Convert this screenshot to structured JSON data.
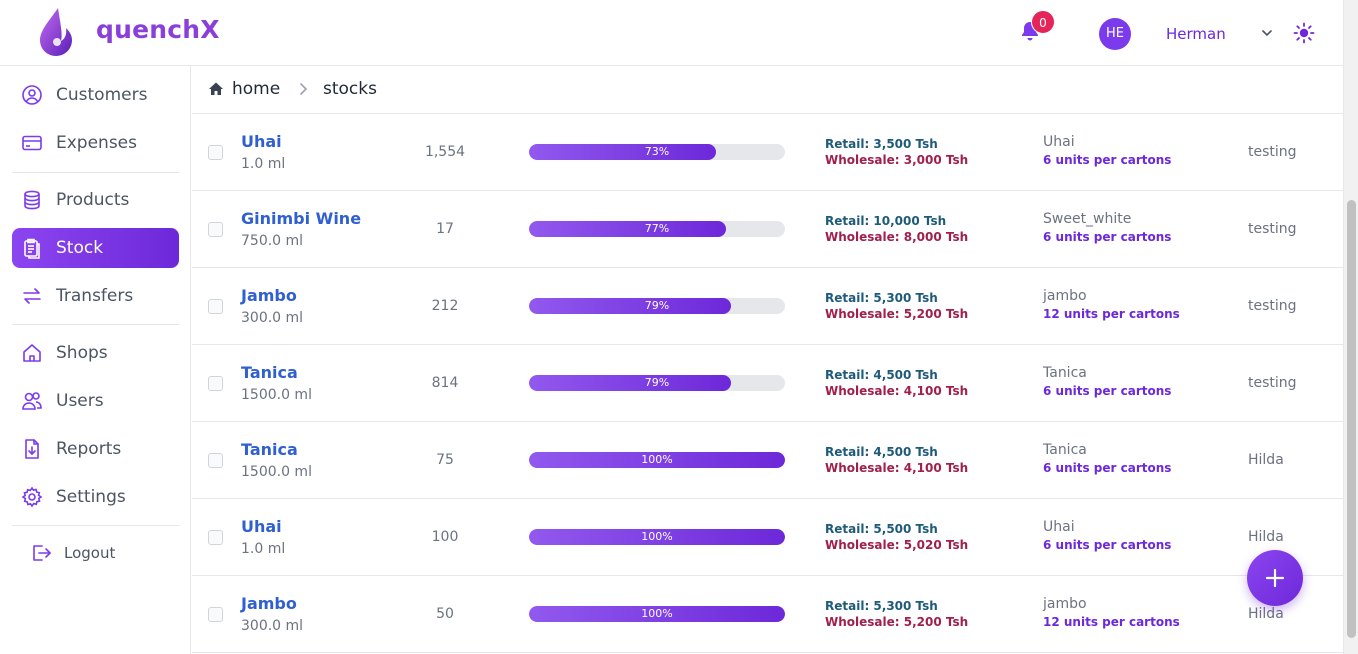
{
  "app": {
    "brand": "quenchX",
    "brand_color": "#8b3fd9",
    "accent": "#7c3aed"
  },
  "header": {
    "notification_count": "0",
    "avatar_initials": "HE",
    "username": "Herman"
  },
  "sidebar": {
    "items": [
      {
        "label": "Customers",
        "icon": "user-circle-icon"
      },
      {
        "label": "Expenses",
        "icon": "credit-card-icon"
      },
      {
        "label": "Products",
        "icon": "database-icon"
      },
      {
        "label": "Stock",
        "icon": "clipboard-icon",
        "active": true
      },
      {
        "label": "Transfers",
        "icon": "arrows-swap-icon"
      },
      {
        "label": "Shops",
        "icon": "home-icon"
      },
      {
        "label": "Users",
        "icon": "users-icon"
      },
      {
        "label": "Reports",
        "icon": "document-download-icon"
      },
      {
        "label": "Settings",
        "icon": "gear-icon"
      }
    ],
    "logout_label": "Logout"
  },
  "breadcrumb": {
    "home": "home",
    "current": "stocks"
  },
  "rows": [
    {
      "name": "Uhai",
      "volume": "1.0 ml",
      "quantity": "1,554",
      "progress": 73,
      "progress_label": "73%",
      "retail": "Retail: 3,500 Tsh",
      "wholesale": "Wholesale: 3,000 Tsh",
      "package": "Uhai",
      "units": "6 units per cartons",
      "owner": "testing"
    },
    {
      "name": "Ginimbi Wine",
      "volume": "750.0 ml",
      "quantity": "17",
      "progress": 77,
      "progress_label": "77%",
      "retail": "Retail: 10,000 Tsh",
      "wholesale": "Wholesale: 8,000 Tsh",
      "package": "Sweet_white",
      "units": "6 units per cartons",
      "owner": "testing"
    },
    {
      "name": "Jambo",
      "volume": "300.0 ml",
      "quantity": "212",
      "progress": 79,
      "progress_label": "79%",
      "retail": "Retail: 5,300 Tsh",
      "wholesale": "Wholesale: 5,200 Tsh",
      "package": "jambo",
      "units": "12 units per cartons",
      "owner": "testing"
    },
    {
      "name": "Tanica",
      "volume": "1500.0 ml",
      "quantity": "814",
      "progress": 79,
      "progress_label": "79%",
      "retail": "Retail: 4,500 Tsh",
      "wholesale": "Wholesale: 4,100 Tsh",
      "package": "Tanica",
      "units": "6 units per cartons",
      "owner": "testing"
    },
    {
      "name": "Tanica",
      "volume": "1500.0 ml",
      "quantity": "75",
      "progress": 100,
      "progress_label": "100%",
      "retail": "Retail: 4,500 Tsh",
      "wholesale": "Wholesale: 4,100 Tsh",
      "package": "Tanica",
      "units": "6 units per cartons",
      "owner": "Hilda"
    },
    {
      "name": "Uhai",
      "volume": "1.0 ml",
      "quantity": "100",
      "progress": 100,
      "progress_label": "100%",
      "retail": "Retail: 5,500 Tsh",
      "wholesale": "Wholesale: 5,020 Tsh",
      "package": "Uhai",
      "units": "6 units per cartons",
      "owner": "Hilda"
    },
    {
      "name": "Jambo",
      "volume": "300.0 ml",
      "quantity": "50",
      "progress": 100,
      "progress_label": "100%",
      "retail": "Retail: 5,300 Tsh",
      "wholesale": "Wholesale: 5,200 Tsh",
      "package": "jambo",
      "units": "12 units per cartons",
      "owner": "Hilda"
    }
  ],
  "fab": {
    "icon": "plus-icon"
  }
}
